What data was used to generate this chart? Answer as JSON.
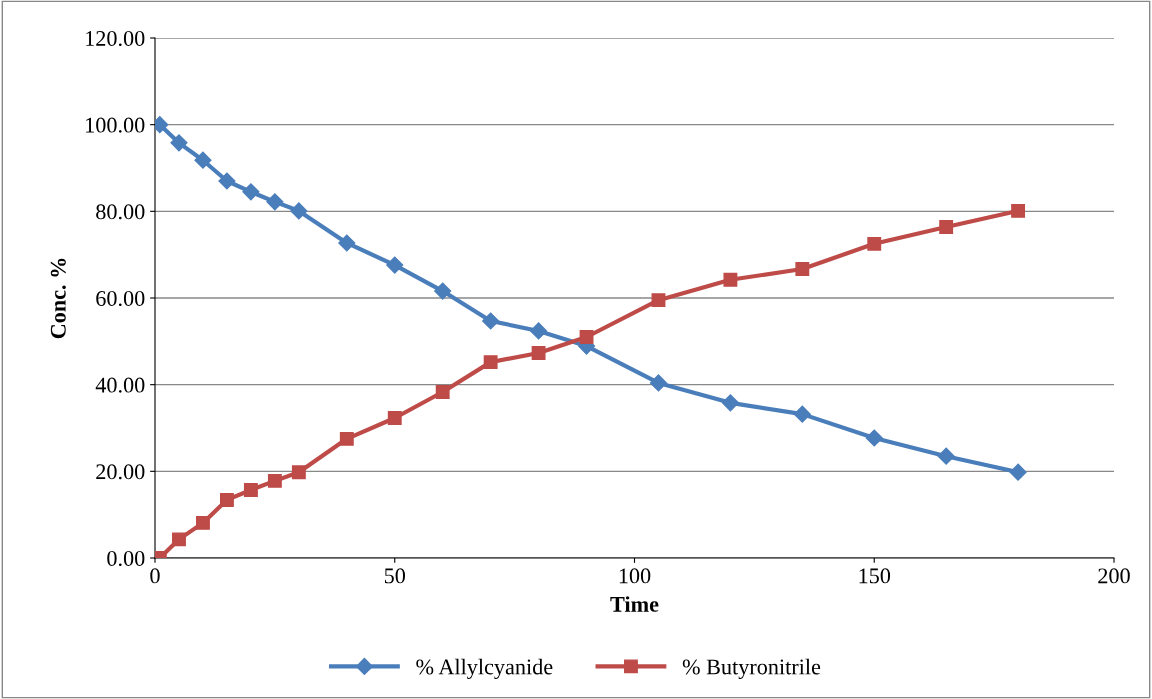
{
  "chart_data": {
    "type": "line",
    "xlabel": "Time",
    "ylabel": "Conc. %",
    "x": [
      1,
      5,
      10,
      15,
      20,
      25,
      30,
      40,
      50,
      60,
      70,
      80,
      90,
      105,
      120,
      135,
      150,
      165,
      180
    ],
    "series": [
      {
        "name": "% Allylcyanide",
        "color": "#4a7ebb",
        "marker": "diamond",
        "values": [
          100,
          95.8,
          91.8,
          87,
          84.5,
          82.2,
          80.1,
          72.7,
          67.6,
          61.6,
          54.7,
          52.4,
          48.9,
          40.4,
          35.8,
          33.2,
          27.7,
          23.5,
          19.8
        ]
      },
      {
        "name": "% Butyronitrile",
        "color": "#be4b48",
        "marker": "square",
        "values": [
          0,
          4.3,
          8.1,
          13.4,
          15.7,
          17.8,
          19.8,
          27.5,
          32.3,
          38.3,
          45.2,
          47.3,
          51,
          59.5,
          64.2,
          66.7,
          72.5,
          76.4,
          80.1
        ]
      }
    ],
    "xlim": [
      0,
      200
    ],
    "xticks": [
      0,
      50,
      100,
      150,
      200
    ],
    "ylim": [
      0,
      120
    ],
    "yticks": [
      {
        "value": 0,
        "label": "0.00"
      },
      {
        "value": 20,
        "label": "20.00"
      },
      {
        "value": 40,
        "label": "40.00"
      },
      {
        "value": 60,
        "label": "60.00"
      },
      {
        "value": 80,
        "label": "80.00"
      },
      {
        "value": 100,
        "label": "100.00"
      },
      {
        "value": 120,
        "label": "120.00"
      }
    ],
    "grid": "y",
    "legend": "bottom"
  }
}
